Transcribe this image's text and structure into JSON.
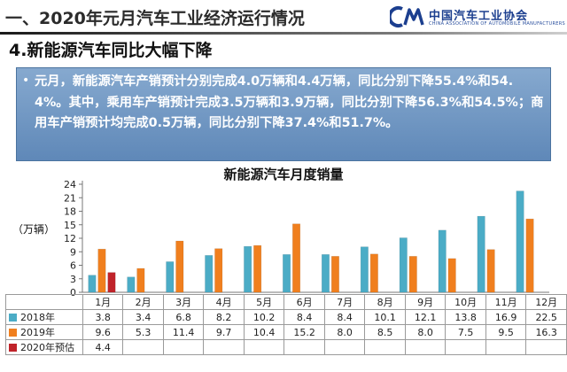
{
  "header": {
    "title": "一、2020年元月汽车工业经济运行情况",
    "logo_text": "中国汽车工业协会",
    "logo_sub": "CHINA ASSOCIATION OF AUTOMOBILE MANUFACTURERS"
  },
  "subtitle": "4.新能源汽车同比大幅下降",
  "summary": {
    "bullet": "•",
    "text": "元月，新能源汽车产销预计分别完成4.0万辆和4.4万辆，同比分别下降55.4%和54.4%。其中，乘用车产销预计完成3.5万辆和3.9万辆，同比分别下降56.3%和54.5%；商用车产销预计均完成0.5万辆，同比分别下降37.4%和51.7%。"
  },
  "chart_data": {
    "type": "bar",
    "title": "新能源汽车月度销量",
    "ylabel": "（万辆）",
    "ylim": [
      0,
      24
    ],
    "yticks": [
      0,
      3,
      6,
      9,
      12,
      15,
      18,
      21,
      24
    ],
    "categories": [
      "1月",
      "2月",
      "3月",
      "4月",
      "5月",
      "6月",
      "7月",
      "8月",
      "9月",
      "10月",
      "11月",
      "12月"
    ],
    "series": [
      {
        "name": "2018年",
        "color": "#4bacc6",
        "values": [
          3.8,
          3.4,
          6.8,
          8.2,
          10.2,
          8.4,
          8.4,
          10.1,
          12.1,
          13.8,
          16.9,
          22.5
        ]
      },
      {
        "name": "2019年",
        "color": "#f07f1e",
        "values": [
          9.6,
          5.3,
          11.4,
          9.7,
          10.4,
          15.2,
          8.0,
          8.5,
          8.0,
          7.5,
          9.5,
          16.3
        ]
      },
      {
        "name": "2020年预估",
        "color": "#c0232a",
        "values": [
          4.4,
          null,
          null,
          null,
          null,
          null,
          null,
          null,
          null,
          null,
          null,
          null
        ]
      }
    ],
    "table_values": [
      [
        "3.8",
        "3.4",
        "6.8",
        "8.2",
        "10.2",
        "8.4",
        "8.4",
        "10.1",
        "12.1",
        "13.8",
        "16.9",
        "22.5"
      ],
      [
        "9.6",
        "5.3",
        "11.4",
        "9.7",
        "10.4",
        "15.2",
        "8.0",
        "8.5",
        "8.0",
        "7.5",
        "9.5",
        "16.3"
      ],
      [
        "4.4",
        "",
        "",
        "",
        "",
        "",
        "",
        "",
        "",
        "",
        "",
        ""
      ]
    ]
  }
}
